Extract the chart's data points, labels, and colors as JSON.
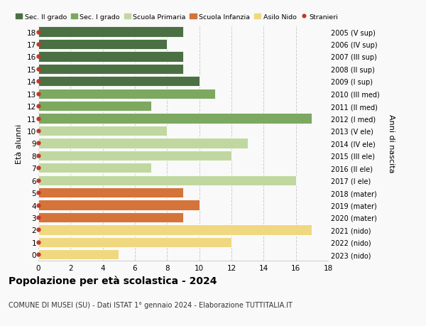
{
  "ages": [
    18,
    17,
    16,
    15,
    14,
    13,
    12,
    11,
    10,
    9,
    8,
    7,
    6,
    5,
    4,
    3,
    2,
    1,
    0
  ],
  "values": [
    9,
    8,
    9,
    9,
    10,
    11,
    7,
    17,
    8,
    13,
    12,
    7,
    16,
    9,
    10,
    9,
    17,
    12,
    5
  ],
  "right_labels": [
    "2005 (V sup)",
    "2006 (IV sup)",
    "2007 (III sup)",
    "2008 (II sup)",
    "2009 (I sup)",
    "2010 (III med)",
    "2011 (II med)",
    "2012 (I med)",
    "2013 (V ele)",
    "2014 (IV ele)",
    "2015 (III ele)",
    "2016 (II ele)",
    "2017 (I ele)",
    "2018 (mater)",
    "2019 (mater)",
    "2020 (mater)",
    "2021 (nido)",
    "2022 (nido)",
    "2023 (nido)"
  ],
  "bar_colors": [
    "#4a7043",
    "#4a7043",
    "#4a7043",
    "#4a7043",
    "#4a7043",
    "#7ca860",
    "#7ca860",
    "#7ca860",
    "#c0d8a0",
    "#c0d8a0",
    "#c0d8a0",
    "#c0d8a0",
    "#c0d8a0",
    "#d4743a",
    "#d4743a",
    "#d4743a",
    "#f0d880",
    "#f0d880",
    "#f0d880"
  ],
  "legend_labels": [
    "Sec. II grado",
    "Sec. I grado",
    "Scuola Primaria",
    "Scuola Infanzia",
    "Asilo Nido",
    "Stranieri"
  ],
  "legend_colors": [
    "#4a7043",
    "#7ca860",
    "#c0d8a0",
    "#d4743a",
    "#f0d880",
    "#c0392b"
  ],
  "stranieri_color": "#c0392b",
  "ylabel_left": "Età alunni",
  "ylabel_right": "Anni di nascita",
  "title": "Popolazione per età scolastica - 2024",
  "subtitle": "COMUNE DI MUSEI (SU) - Dati ISTAT 1° gennaio 2024 - Elaborazione TUTTITALIA.IT",
  "xlim": [
    0,
    18
  ],
  "background_color": "#f9f9f9",
  "grid_color": "#cccccc"
}
